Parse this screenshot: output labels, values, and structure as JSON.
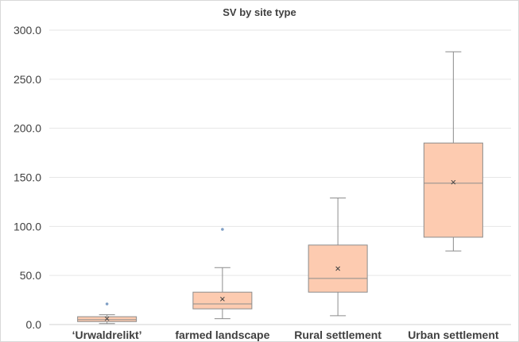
{
  "chart_data": {
    "type": "box",
    "title": "SV by site type",
    "xlabel": "",
    "ylabel": "",
    "ylim": [
      0,
      300
    ],
    "y_ticks": [
      "0.0",
      "50.0",
      "100.0",
      "150.0",
      "200.0",
      "250.0",
      "300.0"
    ],
    "grid": true,
    "categories": [
      "‘Urwaldrelikt’",
      "farmed landscape",
      "Rural settlement",
      "Urban settlement"
    ],
    "boxes": [
      {
        "min": 1,
        "q1": 3,
        "median": 5,
        "q3": 8,
        "max": 10,
        "mean": 6,
        "outliers": [
          21
        ]
      },
      {
        "min": 6,
        "q1": 16,
        "median": 21,
        "q3": 33,
        "max": 58,
        "mean": 26,
        "outliers": [
          97
        ]
      },
      {
        "min": 9,
        "q1": 33,
        "median": 47,
        "q3": 81,
        "max": 129,
        "mean": 57,
        "outliers": []
      },
      {
        "min": 75,
        "q1": 89,
        "median": 144,
        "q3": 185,
        "max": 278,
        "mean": 145,
        "outliers": []
      }
    ],
    "colors": {
      "box_fill": "#fdcbb0",
      "box_stroke": "#8c8c8c",
      "whisker": "#8c8c8c",
      "grid": "#e6e6e6",
      "outlier": "#7f9fc5",
      "text": "#404040"
    }
  }
}
